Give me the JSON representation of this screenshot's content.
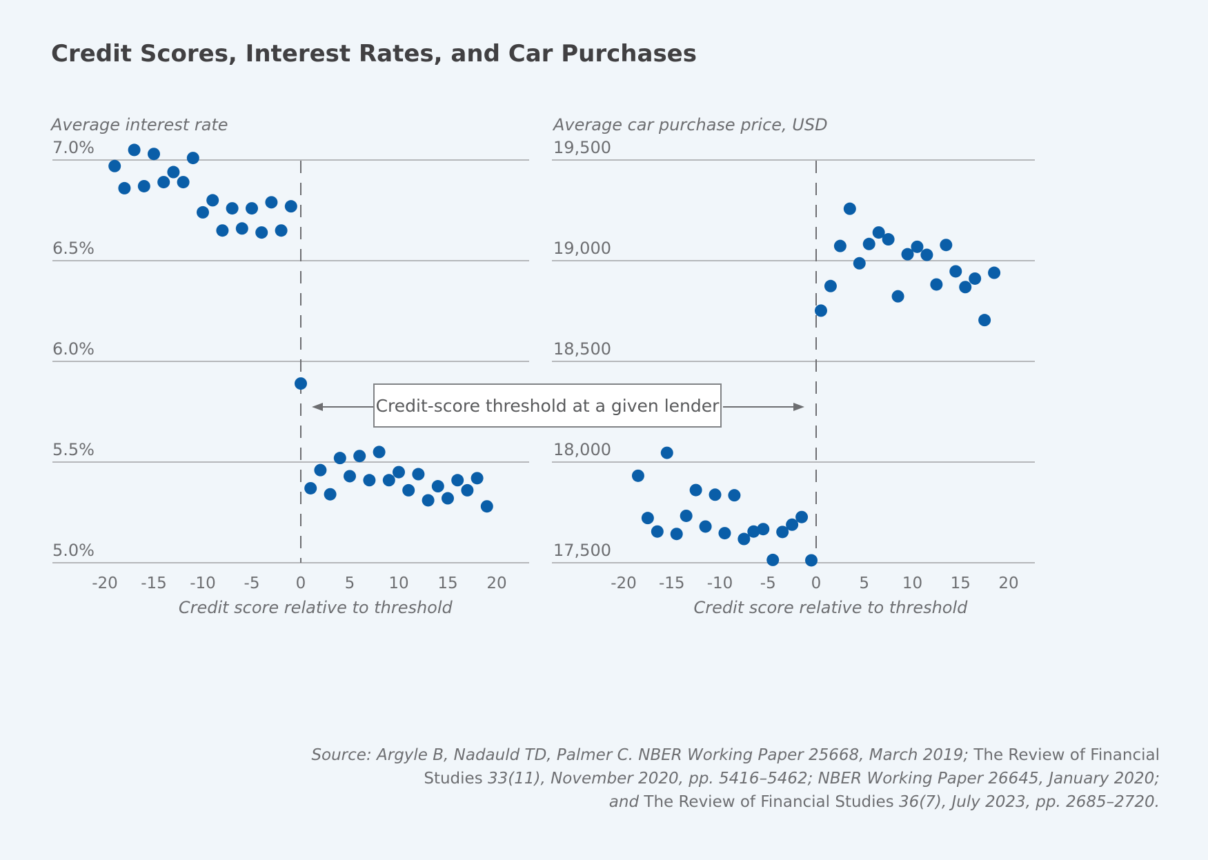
{
  "title": "Credit Scores, Interest Rates, and Car Purchases",
  "annotation": "Credit-score threshold at a given lender",
  "source": {
    "line1_italic": "Source: Argyle B, Nadauld TD, Palmer C. NBER Working Paper 25668, March 2019;",
    "line1_roman": " The Review of Financial",
    "line2_roman": "Studies",
    "line2_italic": " 33(11), November 2020, pp. 5416–5462; NBER Working Paper 26645, January 2020;",
    "line3_italic_a": "and",
    "line3_roman": " The Review of Financial Studies",
    "line3_italic_b": " 36(7), July 2023, pp. 2685–2720."
  },
  "colors": {
    "dot": "#0a5ea8",
    "grid": "#b5b7ba",
    "axis_text": "#6d6e71",
    "threshold": "#6d6e71"
  },
  "chart_data": [
    {
      "type": "scatter",
      "title": "",
      "ylabel": "Average interest rate",
      "xlabel": "Credit score relative to threshold",
      "xlim": [
        -23,
        23
      ],
      "ylim": [
        5.0,
        7.0
      ],
      "xticks": [
        -20,
        -15,
        -10,
        -5,
        0,
        5,
        10,
        15,
        20
      ],
      "xtick_labels": [
        "-20",
        "-15",
        "-10",
        "-5",
        "0",
        "5",
        "10",
        "15",
        "20"
      ],
      "yticks": [
        5.0,
        5.5,
        6.0,
        6.5,
        7.0
      ],
      "ytick_labels": [
        "5.0%",
        "5.5%",
        "6.0%",
        "6.5%",
        "7.0%"
      ],
      "grid": true,
      "threshold_x": 0,
      "x": [
        -19,
        -18,
        -17,
        -16,
        -15,
        -14,
        -13,
        -12,
        -11,
        -10,
        -9,
        -8,
        -7,
        -6,
        -5,
        -4,
        -3,
        -2,
        -1,
        0,
        1,
        2,
        3,
        4,
        5,
        6,
        7,
        8,
        9,
        10,
        11,
        12,
        13,
        14,
        15,
        16,
        17,
        18,
        19
      ],
      "y": [
        6.97,
        6.86,
        7.05,
        6.87,
        7.03,
        6.89,
        6.94,
        6.89,
        7.01,
        6.74,
        6.8,
        6.65,
        6.76,
        6.66,
        6.76,
        6.64,
        6.79,
        6.65,
        6.77,
        5.89,
        5.37,
        5.46,
        5.34,
        5.52,
        5.43,
        5.53,
        5.41,
        5.55,
        5.41,
        5.45,
        5.36,
        5.44,
        5.31,
        5.38,
        5.32,
        5.41,
        5.36,
        5.42,
        5.28
      ]
    },
    {
      "type": "scatter",
      "title": "",
      "ylabel": "Average car purchase price, USD",
      "xlabel": "Credit score relative to threshold",
      "xlim": [
        -23,
        23
      ],
      "ylim": [
        17500,
        19500
      ],
      "xticks": [
        -20,
        -15,
        -10,
        -5,
        0,
        5,
        10,
        15,
        20
      ],
      "xtick_labels": [
        "-20",
        "-15",
        "-10",
        "-5",
        "0",
        "5",
        "10",
        "15",
        "20"
      ],
      "yticks": [
        17500,
        18000,
        18500,
        19000,
        19500
      ],
      "ytick_labels": [
        "17,500",
        "18,000",
        "18,500",
        "19,000",
        "19,500"
      ],
      "grid": true,
      "threshold_x": 0,
      "x": [
        -18.5,
        -17.5,
        -16.5,
        -15.5,
        -14.5,
        -13.5,
        -12.5,
        -11.5,
        -10.5,
        -9.5,
        -8.5,
        -7.5,
        -6.5,
        -5.5,
        -4.5,
        -3.5,
        -2.5,
        -1.5,
        -0.5,
        0.5,
        1.5,
        2.5,
        3.5,
        4.5,
        5.5,
        6.5,
        7.5,
        8.5,
        9.5,
        10.5,
        11.5,
        12.5,
        13.5,
        14.5,
        15.5,
        16.5,
        17.5,
        18.5
      ],
      "y": [
        17932,
        17722,
        17655,
        18046,
        17643,
        17733,
        17861,
        17680,
        17838,
        17647,
        17835,
        17618,
        17655,
        17667,
        17514,
        17653,
        17689,
        17727,
        17512,
        18752,
        18874,
        19073,
        19258,
        18987,
        19083,
        19140,
        19106,
        18823,
        19032,
        19069,
        19029,
        18882,
        19078,
        18947,
        18869,
        18911,
        18705,
        18940
      ]
    }
  ]
}
